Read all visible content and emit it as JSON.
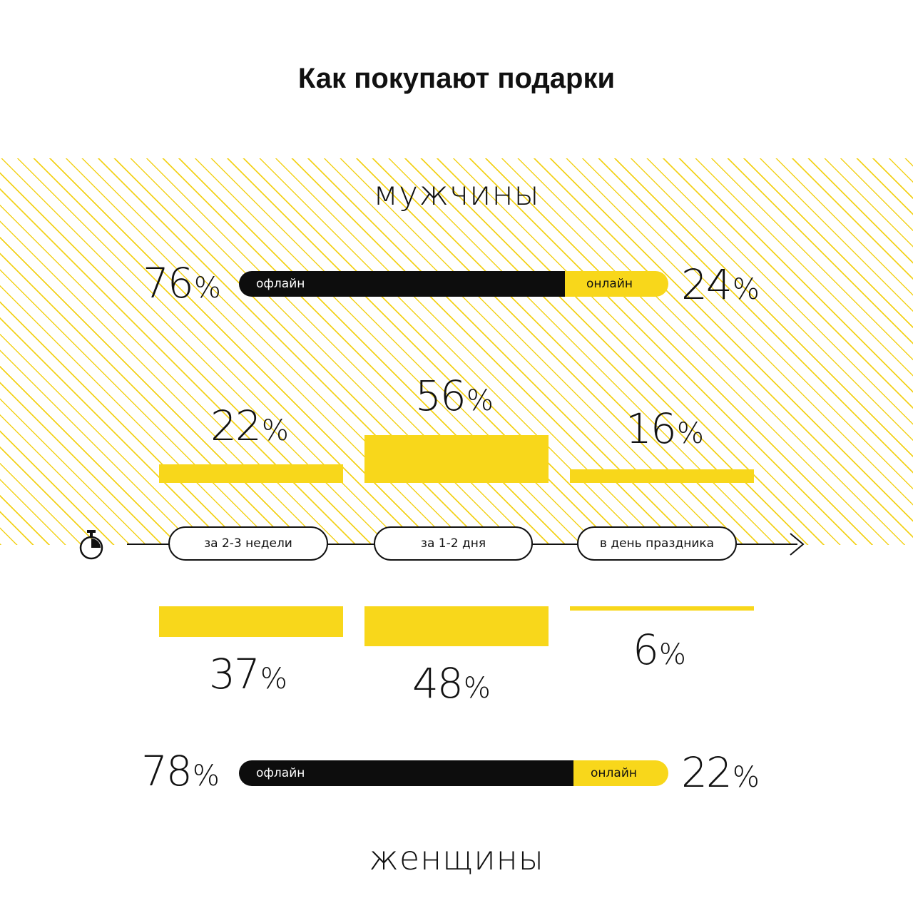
{
  "title": "Как покупают подарки",
  "accent_color": "#f8d71b",
  "men": {
    "label": "мужчины",
    "offline_pct": "76",
    "online_pct": "24",
    "offline_label": "офлайн",
    "online_label": "онлайн"
  },
  "women": {
    "label": "женщины",
    "offline_pct": "78",
    "online_pct": "22",
    "offline_label": "офлайн",
    "online_label": "онлайн"
  },
  "percent_sign": "%",
  "timeline": {
    "icon": "stopwatch-icon",
    "stages": [
      "за 2-3 недели",
      "за 1-2 дня",
      "в день праздника"
    ]
  },
  "chart_data": {
    "type": "bar",
    "categories": [
      "за 2-3 недели",
      "за 1-2 дня",
      "в день праздника"
    ],
    "series": [
      {
        "name": "мужчины",
        "values": [
          22,
          56,
          16
        ]
      },
      {
        "name": "женщины",
        "values": [
          37,
          48,
          6
        ]
      }
    ],
    "channel_split": {
      "categories": [
        "офлайн",
        "онлайн"
      ],
      "series": [
        {
          "name": "мужчины",
          "values": [
            76,
            24
          ]
        },
        {
          "name": "женщины",
          "values": [
            78,
            22
          ]
        }
      ]
    }
  }
}
